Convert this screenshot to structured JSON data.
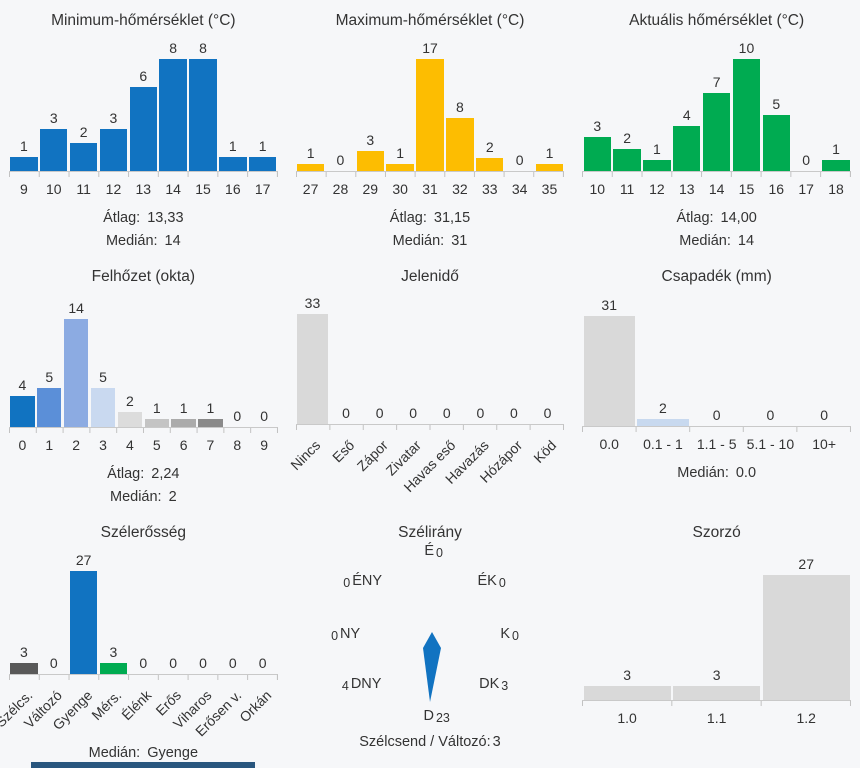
{
  "page": {
    "background": "#f6f7f9",
    "text_color": "#333333",
    "axis_color": "#c9c9c9",
    "bottom_strip_color": "#29567e"
  },
  "chart_data": [
    {
      "type": "bar",
      "title": "Minimum-hőmérséklet (°C)",
      "categories": [
        "9",
        "10",
        "11",
        "12",
        "13",
        "14",
        "15",
        "16",
        "17"
      ],
      "values": [
        1,
        3,
        2,
        3,
        6,
        8,
        8,
        1,
        1
      ],
      "color": "#1173c1",
      "stats": [
        {
          "label": "Átlag:",
          "value": "13,33"
        },
        {
          "label": "Medián:",
          "value": "14"
        }
      ]
    },
    {
      "type": "bar",
      "title": "Maximum-hőmérséklet (°C)",
      "categories": [
        "27",
        "28",
        "29",
        "30",
        "31",
        "32",
        "33",
        "34",
        "35"
      ],
      "values": [
        1,
        0,
        3,
        1,
        17,
        8,
        2,
        0,
        1
      ],
      "color": "#fdbd01",
      "stats": [
        {
          "label": "Átlag:",
          "value": "31,15"
        },
        {
          "label": "Medián:",
          "value": "31"
        }
      ]
    },
    {
      "type": "bar",
      "title": "Aktuális hőmérséklet (°C)",
      "categories": [
        "10",
        "11",
        "12",
        "13",
        "14",
        "15",
        "16",
        "17",
        "18"
      ],
      "values": [
        3,
        2,
        1,
        4,
        7,
        10,
        5,
        0,
        1
      ],
      "color": "#00ab51",
      "stats": [
        {
          "label": "Átlag:",
          "value": "14,00"
        },
        {
          "label": "Medián:",
          "value": "14"
        }
      ]
    },
    {
      "type": "bar",
      "title": "Felhőzet (okta)",
      "categories": [
        "0",
        "1",
        "2",
        "3",
        "4",
        "5",
        "6",
        "7",
        "8",
        "9"
      ],
      "values": [
        4,
        5,
        14,
        5,
        2,
        1,
        1,
        1,
        0,
        0
      ],
      "bar_colors": [
        "#1173c1",
        "#5b8fd8",
        "#8cabe2",
        "#c9d9f0",
        "#dcdcdc",
        "#c4c4c4",
        "#ababab",
        "#8a8a8a",
        "#d9d9d9",
        "#d9d9d9"
      ],
      "stats": [
        {
          "label": "Átlag:",
          "value": "2,24"
        },
        {
          "label": "Medián:",
          "value": "2"
        }
      ]
    },
    {
      "type": "bar",
      "title": "Jelenidő",
      "categories": [
        "Nincs",
        "Eső",
        "Zápor",
        "Zivatar",
        "Havas eső",
        "Havazás",
        "Hózápor",
        "Köd"
      ],
      "values": [
        33,
        0,
        0,
        0,
        0,
        0,
        0,
        0
      ],
      "color": "#d9d9d9",
      "rotated_labels": true,
      "stats": []
    },
    {
      "type": "bar",
      "title": "Csapadék (mm)",
      "categories": [
        "0.0",
        "0.1 - 1",
        "1.1 - 5",
        "5.1 - 10",
        "10+"
      ],
      "values": [
        31,
        2,
        0,
        0,
        0
      ],
      "bar_colors": [
        "#d9d9d9",
        "#c8d9ef",
        "#d9d9d9",
        "#d9d9d9",
        "#d9d9d9"
      ],
      "stats": [
        {
          "label": "Medián:",
          "value": "0.0"
        }
      ]
    },
    {
      "type": "bar",
      "title": "Szélerősség",
      "categories": [
        "Szélcs.",
        "Változó",
        "Gyenge",
        "Mérs.",
        "Élénk",
        "Erős",
        "Viharos",
        "Erősen v.",
        "Orkán"
      ],
      "values": [
        3,
        0,
        27,
        3,
        0,
        0,
        0,
        0,
        0
      ],
      "bar_colors": [
        "#595959",
        "#d9d9d9",
        "#1173c1",
        "#00ab51",
        "#d9d9d9",
        "#d9d9d9",
        "#d9d9d9",
        "#d9d9d9",
        "#d9d9d9"
      ],
      "rotated_labels": true,
      "stats": [
        {
          "label": "Medián:",
          "value": "Gyenge"
        }
      ]
    },
    {
      "type": "compass",
      "title": "Szélirány",
      "needle_color": "#1173c1",
      "directions": [
        {
          "dir": "É",
          "count": "0"
        },
        {
          "dir": "ÉK",
          "count": "0"
        },
        {
          "dir": "K",
          "count": "0"
        },
        {
          "dir": "DK",
          "count": "3"
        },
        {
          "dir": "D",
          "count": "23"
        },
        {
          "dir": "DNY",
          "count": "4"
        },
        {
          "dir": "NY",
          "count": "0"
        },
        {
          "dir": "ÉNY",
          "count": "0"
        }
      ],
      "footer": {
        "label": "Szélcsend / Változó:",
        "value": "3"
      }
    },
    {
      "type": "bar",
      "title": "Szorzó",
      "categories": [
        "1.0",
        "1.1",
        "1.2"
      ],
      "values": [
        3,
        3,
        27
      ],
      "color": "#d9d9d9",
      "stats": []
    }
  ]
}
